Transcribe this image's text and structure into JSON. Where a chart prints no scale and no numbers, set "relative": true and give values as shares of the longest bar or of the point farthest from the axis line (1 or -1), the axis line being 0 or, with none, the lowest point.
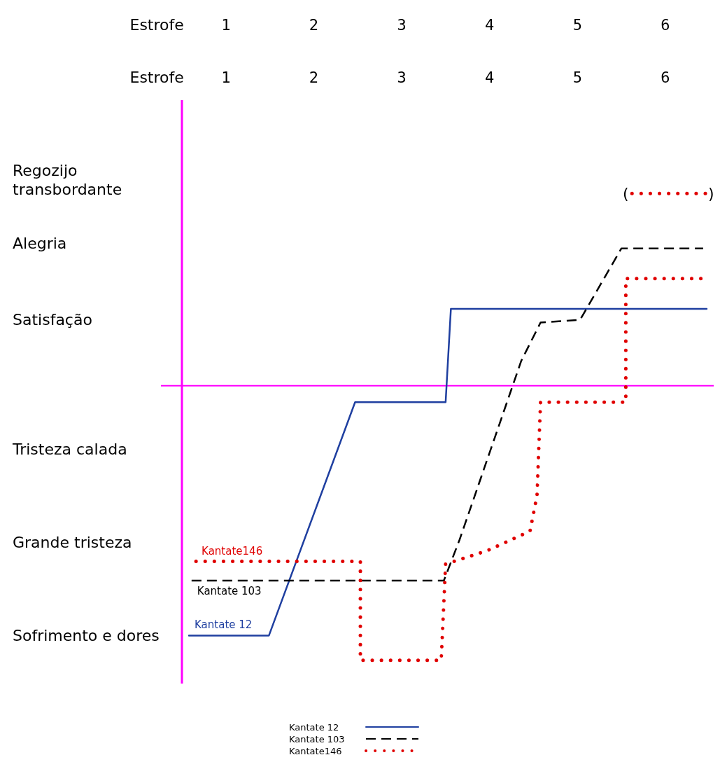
{
  "chart_data": {
    "type": "line",
    "xlabel": "Estrofe",
    "x2label": "Estrofe",
    "relative": true,
    "xlim": [
      0.5,
      6.55
    ],
    "xticks": [
      1,
      2,
      3,
      4,
      5,
      6
    ],
    "x2lim": [
      0.5,
      6.55
    ],
    "x2ticks": [
      1,
      2,
      3,
      4,
      5,
      6
    ],
    "grid": false,
    "legend": "bottom",
    "ref_lines": [
      {
        "axis": "y",
        "value": 0,
        "color": "#ff00ff"
      }
    ],
    "annotations": [
      "Sofrimento e dores",
      "Grande tristeza",
      "Tristeza calada",
      "Satisfação",
      "Alegria",
      "Regozijo transbordante",
      "(",
      ")"
    ],
    "series": [
      {
        "name": "Kantate 12",
        "color": "#1f3fa0",
        "line_style": "solid",
        "x": [
          0.58,
          1.49,
          2.47,
          3.5,
          3.56,
          6.47
        ],
        "values": [
          -0.91,
          -0.91,
          -0.06,
          -0.06,
          0.28,
          0.28
        ]
      },
      {
        "name": "Kantate 103",
        "color": "#000000",
        "line_style": "dashed",
        "x": [
          0.61,
          3.48,
          3.66,
          4.36,
          4.58,
          5.03,
          5.5,
          6.43
        ],
        "values": [
          -0.71,
          -0.71,
          -0.56,
          0.09,
          0.23,
          0.24,
          0.5,
          0.5
        ]
      },
      {
        "name": "Kantate146",
        "color": "#e00000",
        "line_style": "dotted",
        "x": [
          0.66,
          2.53,
          2.53,
          3.45,
          3.5,
          3.98,
          4.46,
          4.54,
          4.58,
          5.55,
          5.55,
          6.47
        ],
        "values": [
          -0.64,
          -0.64,
          -1,
          -1,
          -0.65,
          -0.6,
          -0.53,
          -0.4,
          -0.06,
          -0.06,
          0.39,
          0.39
        ]
      },
      {
        "color": "#e00000",
        "line_style": "dotted",
        "x": [
          5.62,
          6.47
        ],
        "values": [
          0.7,
          0.7
        ]
      }
    ]
  }
}
